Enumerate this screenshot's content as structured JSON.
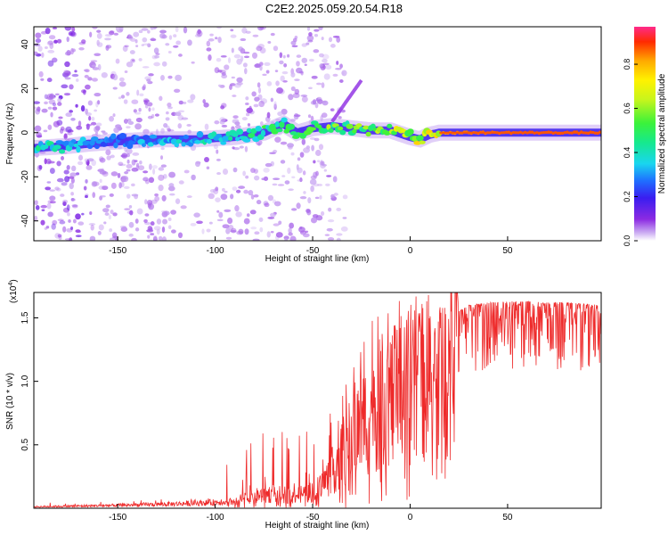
{
  "title": "C2E2.2025.059.20.54.R18",
  "colors": {
    "snr_line": "#ee2a2a",
    "background": "#ffffff",
    "axis": "#000000",
    "colormap": [
      "#ffffff",
      "#c9a8f2",
      "#8c2be2",
      "#3a1df0",
      "#1f6fff",
      "#19d6ef",
      "#16e98c",
      "#3bf23a",
      "#c8f51c",
      "#fff200",
      "#ffaa00",
      "#ff2a00",
      "#ff2a8a"
    ]
  },
  "chart_data": [
    {
      "type": "heatmap",
      "title": "C2E2.2025.059.20.54.R18",
      "xlabel": "Height of straight line (km)",
      "ylabel": "Frequency (Hz)",
      "xlim": [
        -193,
        98
      ],
      "ylim": [
        -49,
        48
      ],
      "x_ticks": [
        -150,
        -100,
        -50,
        0,
        50
      ],
      "x_tick_labels": [
        "-150",
        "-100",
        "-50",
        "0",
        "50"
      ],
      "y_ticks": [
        -40,
        -20,
        0,
        20,
        40
      ],
      "y_tick_labels": [
        "-40",
        "-20",
        "0",
        "20",
        "40"
      ],
      "colorbar": {
        "label": "Normalized spectral amplitude",
        "range": [
          0.0,
          0.97
        ],
        "ticks": [
          0.0,
          0.2,
          0.4,
          0.6,
          0.8
        ],
        "tick_labels": [
          "0.0",
          "0.2",
          "0.4",
          "0.6",
          "0.8"
        ]
      },
      "ridge": {
        "x": [
          -193,
          -175,
          -165,
          -150,
          -130,
          -110,
          -90,
          -75,
          -65,
          -58,
          -50,
          -40,
          -30,
          -20,
          -10,
          0,
          5,
          10,
          15,
          30,
          60,
          98
        ],
        "freq": [
          -7,
          -6,
          -5,
          -4,
          -3,
          -3,
          -2,
          0,
          4,
          0,
          2,
          3,
          2,
          1,
          1,
          -2,
          -3,
          -1,
          0,
          0,
          0,
          0
        ],
        "amplitude": [
          0.45,
          0.4,
          0.3,
          0.3,
          0.35,
          0.4,
          0.45,
          0.5,
          0.5,
          0.6,
          0.62,
          0.6,
          0.58,
          0.62,
          0.7,
          0.72,
          0.75,
          0.8,
          0.85,
          0.88,
          0.9,
          0.9
        ]
      }
    },
    {
      "type": "line",
      "xlabel": "Height of straight line (km)",
      "ylabel": "SNR (10 * v/v)",
      "y_multiplier_label": "(x10",
      "y_multiplier_exponent": "4",
      "xlim": [
        -193,
        98
      ],
      "ylim": [
        0,
        1.7
      ],
      "x_ticks": [
        -150,
        -100,
        -50,
        0,
        50
      ],
      "x_tick_labels": [
        "-150",
        "-100",
        "-50",
        "0",
        "50"
      ],
      "y_ticks": [
        0.5,
        1.0,
        1.5
      ],
      "y_tick_labels": [
        "0.5",
        "1.0",
        "1.5"
      ],
      "series": [
        {
          "name": "SNR",
          "x_knots": [
            -193,
            -170,
            -150,
            -120,
            -100,
            -95,
            -90,
            -80,
            -70,
            -60,
            -50,
            -45,
            -40,
            -35,
            -30,
            -25,
            -20,
            -15,
            -10,
            -5,
            0,
            10,
            20,
            25,
            30,
            40,
            50,
            60,
            70,
            80,
            98
          ],
          "y_knots": [
            0.01,
            0.015,
            0.02,
            0.03,
            0.04,
            0.05,
            0.08,
            0.13,
            0.16,
            0.14,
            0.18,
            0.25,
            0.4,
            0.6,
            0.75,
            0.9,
            1.05,
            1.15,
            1.2,
            1.2,
            1.28,
            1.4,
            1.5,
            1.55,
            1.6,
            1.62,
            1.63,
            1.63,
            1.62,
            1.62,
            1.6
          ]
        }
      ]
    }
  ]
}
